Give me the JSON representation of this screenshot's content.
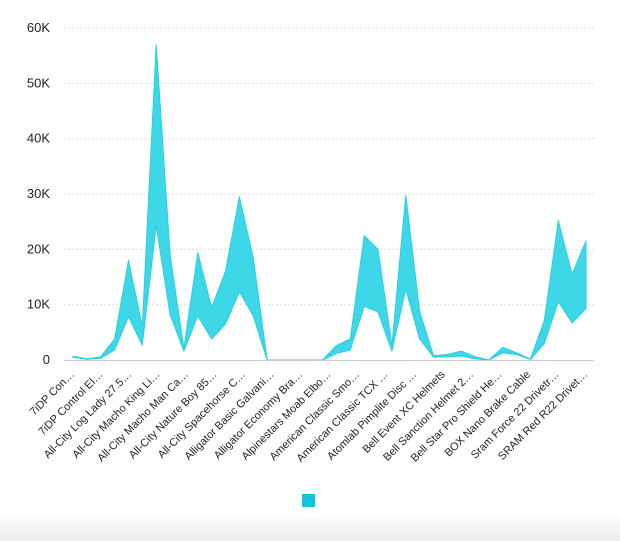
{
  "colors": {
    "band_fill": "#3ed7e8",
    "band_stroke": "#27cfe2",
    "grid": "#dddddd",
    "axis_text": "#222222"
  },
  "legend": {
    "swatch_color": "#12c3de",
    "label": ""
  },
  "chart_data": {
    "type": "area",
    "subtype": "range-band",
    "title": "",
    "xlabel": "",
    "ylabel": "",
    "ylim": [
      0,
      60000
    ],
    "yticks": [
      0,
      10000,
      20000,
      30000,
      40000,
      50000,
      60000
    ],
    "ytick_labels": [
      "0",
      "10K",
      "20K",
      "30K",
      "40K",
      "50K",
      "60K"
    ],
    "grid": true,
    "legend_position": "bottom",
    "x_labels_shown": [
      "7iDP Con…",
      "7iDP Control El…",
      "All-City Log Lady 27.5…",
      "All-City Macho King Li…",
      "All-City Macho Man Ca…",
      "All-City Nature Boy 85…",
      "All-City Spacehorse C…",
      "Alligator Basic Galvani…",
      "Alligator Economy Bra…",
      "Alpinestars Moab Elbo…",
      "American Classic Smo…",
      "American Classic TCX …",
      "Atomlab Pimplite Disc …",
      "Bell Event XC Helmets",
      "Bell Sanction Helmet 2…",
      "Bell Star Pro Shield He…",
      "BOX Nano Brake Cable",
      "Sram Force 22 Drivetr…",
      "SRAM Red R22 Drivet…"
    ],
    "series": [
      {
        "values_low": [
          500,
          100,
          300,
          1800,
          7800,
          2700,
          24300,
          8200,
          1600,
          8000,
          3800,
          6500,
          12300,
          8000,
          0,
          0,
          0,
          0,
          0,
          1200,
          1800,
          9700,
          8700,
          1600,
          12800,
          3800,
          500,
          600,
          700,
          200,
          0,
          1300,
          1000,
          100,
          3000,
          10500,
          6700,
          9300
        ],
        "values_high": [
          700,
          200,
          600,
          3800,
          18000,
          6100,
          57000,
          19000,
          2100,
          19400,
          9500,
          16000,
          29500,
          18500,
          0,
          0,
          0,
          0,
          0,
          2600,
          3800,
          22500,
          20000,
          2600,
          29800,
          8800,
          800,
          1000,
          1600,
          600,
          0,
          2300,
          1300,
          200,
          7200,
          25200,
          15500,
          21500
        ]
      }
    ]
  }
}
